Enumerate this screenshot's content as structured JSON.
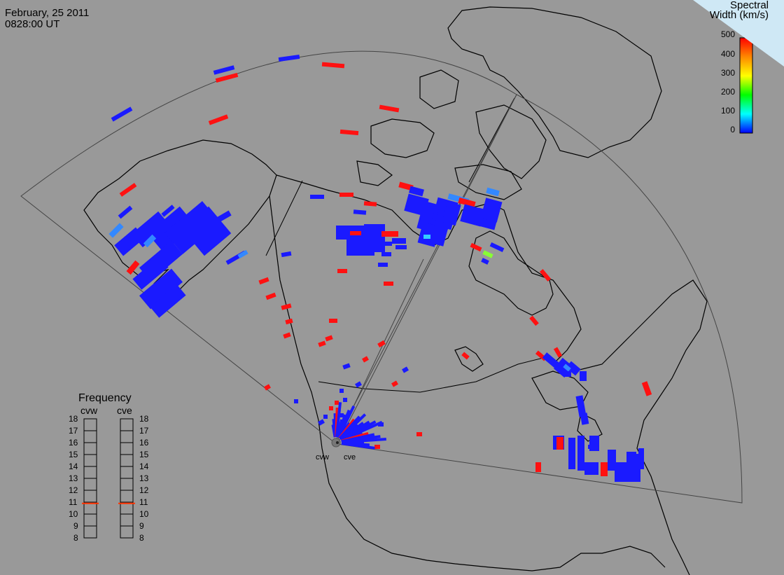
{
  "header": {
    "date": "February, 25 2011",
    "time": "0828:00 UT"
  },
  "colorbar": {
    "title_line1": "Spectral",
    "title_line2": "Width (km/s)",
    "ticks": [
      "500",
      "400",
      "300",
      "200",
      "100",
      "0"
    ],
    "colors": [
      "#ff0000",
      "#ff8800",
      "#ffff00",
      "#00ff00",
      "#00ffff",
      "#0000ff"
    ]
  },
  "frequency_panel": {
    "title": "Frequency",
    "radar_left": "cvw",
    "radar_right": "cve",
    "ticks": [
      "18",
      "17",
      "16",
      "15",
      "14",
      "13",
      "12",
      "11",
      "10",
      "9",
      "8"
    ],
    "cvw_freq_mhz": 10.9,
    "cve_freq_mhz": 10.9,
    "marker_color": "#ff3300"
  },
  "radars": {
    "site_label_west": "cvw",
    "site_label_east": "cve"
  },
  "colors": {
    "background": "#999999",
    "coastline": "#000000",
    "fov_outline": "#444444",
    "low_width": "#1a1aff",
    "high_width": "#ff1111"
  }
}
